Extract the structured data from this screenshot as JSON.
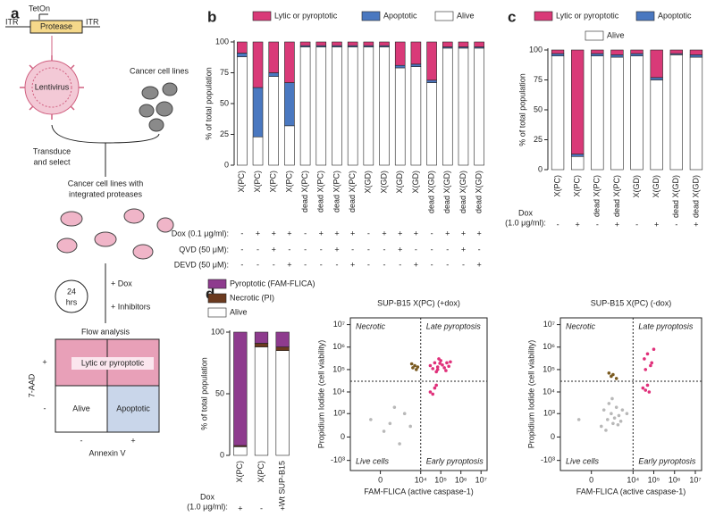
{
  "panel_labels": [
    "a",
    "b",
    "c",
    "d"
  ],
  "diagram": {
    "tet_on": "TetOn",
    "itr_left": "ITR",
    "protease": "Protease",
    "itr_right": "ITR",
    "lentivirus": "Lentivirus",
    "cancer_cell_lines": "Cancer cell lines",
    "transduce": [
      "Transduce",
      "and select"
    ],
    "integrated": [
      "Cancer cell lines with",
      "integrated proteases"
    ],
    "hours": [
      "24",
      "hrs"
    ],
    "dox": "+ Dox",
    "inhibitors": "+ Inhibitors",
    "flow_analysis": "Flow analysis",
    "y_axis": "7-AAD",
    "y_plus": "+",
    "y_minus": "-",
    "lytic": "Lytic or pyroptotic",
    "alive": "Alive",
    "apoptotic": "Apoptotic",
    "x_minus": "-",
    "x_plus": "+",
    "x_axis": "Annexin V"
  },
  "chart_data": [
    {
      "type": "stacked_bar",
      "y_label": "% of total population",
      "legend": "top",
      "categories": [
        "X(PC)",
        "X(PC)",
        "X(PC)",
        "X(PC)",
        "dead X(PC)",
        "dead X(PC)",
        "dead X(PC)",
        "dead X(PC)",
        "X(GD)",
        "X(GD)",
        "X(GD)",
        "X(GD)",
        "dead X(GD)",
        "dead X(GD)",
        "dead X(GD)",
        "dead X(GD)"
      ],
      "series": [
        {
          "name": "Lytic or pyroptotic",
          "color": "#d93a78",
          "values": [
            9,
            37,
            25,
            33,
            3,
            3,
            3,
            3,
            3,
            3,
            19,
            18,
            31,
            4,
            4,
            4
          ]
        },
        {
          "name": "Apoptotic",
          "color": "#4a78c0",
          "values": [
            3,
            40,
            3,
            35,
            1,
            1,
            1,
            1,
            1,
            1,
            2,
            2,
            2,
            1,
            1,
            1
          ]
        },
        {
          "name": "Alive",
          "color": "#ffffff",
          "values": [
            88,
            23,
            72,
            32,
            96,
            96,
            96,
            96,
            96,
            96,
            79,
            80,
            67,
            95,
            95,
            95
          ]
        }
      ],
      "ylim": [
        0,
        100
      ],
      "yticks": [
        0,
        25,
        50,
        75,
        100
      ],
      "conditions": [
        {
          "label": [
            "Dox (0.1 μg/ml):"
          ],
          "values": [
            "-",
            "+",
            "+",
            "+",
            "-",
            "+",
            "+",
            "+",
            "-",
            "+",
            "+",
            "+",
            "-",
            "+",
            "+",
            "+"
          ]
        },
        {
          "label": [
            "QVD (50 μM):"
          ],
          "values": [
            "-",
            "-",
            "+",
            "-",
            "-",
            "-",
            "+",
            "-",
            "-",
            "-",
            "+",
            "-",
            "-",
            "-",
            "+",
            "-"
          ]
        },
        {
          "label": [
            "DEVD (50 μM):"
          ],
          "values": [
            "-",
            "-",
            "-",
            "+",
            "-",
            "-",
            "-",
            "+",
            "-",
            "-",
            "-",
            "+",
            "-",
            "-",
            "-",
            "+"
          ]
        }
      ]
    },
    {
      "type": "stacked_bar",
      "y_label": "% of total population",
      "legend": "top",
      "categories": [
        "X(PC)",
        "X(PC)",
        "dead X(PC)",
        "dead X(PC)",
        "X(GD)",
        "X(GD)",
        "dead X(GD)",
        "dead X(GD)"
      ],
      "series": [
        {
          "name": "Lytic or pyroptotic",
          "color": "#d93a78",
          "values": [
            3,
            87,
            3,
            4,
            3,
            23,
            3,
            4
          ]
        },
        {
          "name": "Apoptotic",
          "color": "#4a78c0",
          "values": [
            2,
            2,
            2,
            2,
            2,
            2,
            1,
            2
          ]
        },
        {
          "name": "Alive",
          "color": "#ffffff",
          "values": [
            95,
            11,
            95,
            94,
            95,
            75,
            96,
            94
          ]
        }
      ],
      "ylim": [
        0,
        100
      ],
      "yticks": [
        0,
        25,
        50,
        75,
        100
      ],
      "conditions": [
        {
          "label": [
            "Dox",
            "(1.0 μg/ml):"
          ],
          "values": [
            "-",
            "+",
            "-",
            "+",
            "-",
            "+",
            "-",
            "+"
          ]
        }
      ]
    },
    {
      "type": "stacked_bar",
      "y_label": "% of total population",
      "legend": "top-left",
      "categories": [
        "X(PC)",
        "X(PC)",
        "Wt SUP-B15"
      ],
      "series": [
        {
          "name": "Pyroptotic (FAM-FLICA)",
          "color": "#8e3b8e",
          "values": [
            92,
            9,
            12
          ]
        },
        {
          "name": "Necrotic (PI)",
          "color": "#6b3a1f",
          "values": [
            1,
            3,
            3
          ]
        },
        {
          "name": "Alive",
          "color": "#ffffff",
          "values": [
            7,
            88,
            85
          ]
        }
      ],
      "ylim": [
        0,
        100
      ],
      "yticks": [
        0,
        50,
        100
      ],
      "conditions": [
        {
          "label": [
            "Dox",
            "(1.0 μg/ml):"
          ],
          "values": [
            "+",
            "-",
            "+"
          ]
        }
      ]
    },
    {
      "type": "scatter",
      "title": "SUP-B15 X(PC) (+dox)",
      "scale": "biexponential",
      "x_label": "FAM-FLICA (active caspase-1)",
      "y_label": "Propidium Iodide (cell viability)",
      "xlim": [
        -3000,
        20000000
      ],
      "ylim": [
        -3000,
        20000000
      ],
      "xticks": [
        {
          "value": 0,
          "label": "0"
        },
        {
          "value": 10000,
          "label": "10⁴"
        },
        {
          "value": 100000,
          "label": "10⁵"
        },
        {
          "value": 1000000,
          "label": "10⁶"
        },
        {
          "value": 10000000,
          "label": "10⁷"
        }
      ],
      "yticks": [
        {
          "value": -1000,
          "label": "-10³"
        },
        {
          "value": 0,
          "label": "0"
        },
        {
          "value": 1000,
          "label": "10³"
        },
        {
          "value": 10000,
          "label": "10⁴"
        },
        {
          "value": 100000,
          "label": "10⁵"
        },
        {
          "value": 1000000,
          "label": "10⁶"
        },
        {
          "value": 10000000,
          "label": "10⁷"
        }
      ],
      "gates": {
        "x": 10000,
        "y": 30000
      },
      "quadrants": [
        {
          "label": "Necrotic",
          "color": "#7a5a20"
        },
        {
          "label": "Late pyroptosis",
          "color": "#a0307a"
        },
        {
          "label": "Live cells",
          "color": "#888888"
        },
        {
          "label": "Early pyroptosis",
          "color": "#a0307a"
        }
      ],
      "series": [
        {
          "color": "#e0307a",
          "x": [
            30000,
            50000,
            70000,
            100000,
            150000,
            200000,
            80000,
            60000,
            120000,
            40000,
            90000,
            250000,
            300000,
            180000,
            70000,
            30000,
            50000,
            40000,
            60000
          ],
          "y": [
            150000,
            200000,
            100000,
            250000,
            120000,
            200000,
            300000,
            80000,
            160000,
            110000,
            190000,
            140000,
            220000,
            90000,
            130000,
            10000,
            15000,
            8000,
            20000
          ]
        },
        {
          "color": "#b8b8b8",
          "x": [
            50,
            200,
            800,
            -200,
            1500,
            400,
            3000
          ],
          "y": [
            80,
            300,
            -100,
            500,
            1000,
            2000,
            200
          ]
        },
        {
          "color": "#7a5a20",
          "x": [
            4000,
            5000,
            6000,
            3500,
            7000
          ],
          "y": [
            120000,
            150000,
            100000,
            180000,
            130000
          ]
        }
      ]
    },
    {
      "type": "scatter",
      "title": "SUP-B15 X(PC) (-dox)",
      "scale": "biexponential",
      "x_label": "FAM-FLICA (active caspase-1)",
      "y_label": "Propidium Iodide (cell viability)",
      "xlim": [
        -3000,
        20000000
      ],
      "ylim": [
        -3000,
        20000000
      ],
      "xticks": [
        {
          "value": 0,
          "label": "0"
        },
        {
          "value": 10000,
          "label": "10⁴"
        },
        {
          "value": 100000,
          "label": "10⁵"
        },
        {
          "value": 1000000,
          "label": "10⁶"
        },
        {
          "value": 10000000,
          "label": "10⁷"
        }
      ],
      "yticks": [
        {
          "value": -1000,
          "label": "-10³"
        },
        {
          "value": 0,
          "label": "0"
        },
        {
          "value": 1000,
          "label": "10³"
        },
        {
          "value": 10000,
          "label": "10⁴"
        },
        {
          "value": 100000,
          "label": "10⁵"
        },
        {
          "value": 1000000,
          "label": "10⁶"
        },
        {
          "value": 10000000,
          "label": "10⁷"
        }
      ],
      "gates": {
        "x": 10000,
        "y": 30000
      },
      "quadrants": [
        {
          "label": "Necrotic",
          "color": "#7a5a20"
        },
        {
          "label": "Late pyroptosis",
          "color": "#a0307a"
        },
        {
          "label": "Live cells",
          "color": "#888888"
        },
        {
          "label": "Early pyroptosis",
          "color": "#a0307a"
        }
      ],
      "series": [
        {
          "color": "#b8b8b8",
          "x": [
            200,
            500,
            800,
            1000,
            1500,
            2000,
            3000,
            600,
            1200,
            2500,
            400,
            5000,
            300,
            900,
            -300,
            1800
          ],
          "y": [
            200,
            500,
            1000,
            300,
            2000,
            800,
            1500,
            3000,
            600,
            400,
            100,
            1000,
            1500,
            5000,
            500,
            250
          ]
        },
        {
          "color": "#e0307a",
          "x": [
            30000,
            40000,
            50000,
            60000,
            35000,
            80000,
            50000,
            70000,
            40000,
            100000
          ],
          "y": [
            15000,
            12000,
            20000,
            10000,
            300000,
            200000,
            500000,
            150000,
            100000,
            800000
          ]
        },
        {
          "color": "#7a5a20",
          "x": [
            800,
            1000,
            1500,
            600
          ],
          "y": [
            50000,
            60000,
            40000,
            70000
          ]
        }
      ]
    }
  ]
}
